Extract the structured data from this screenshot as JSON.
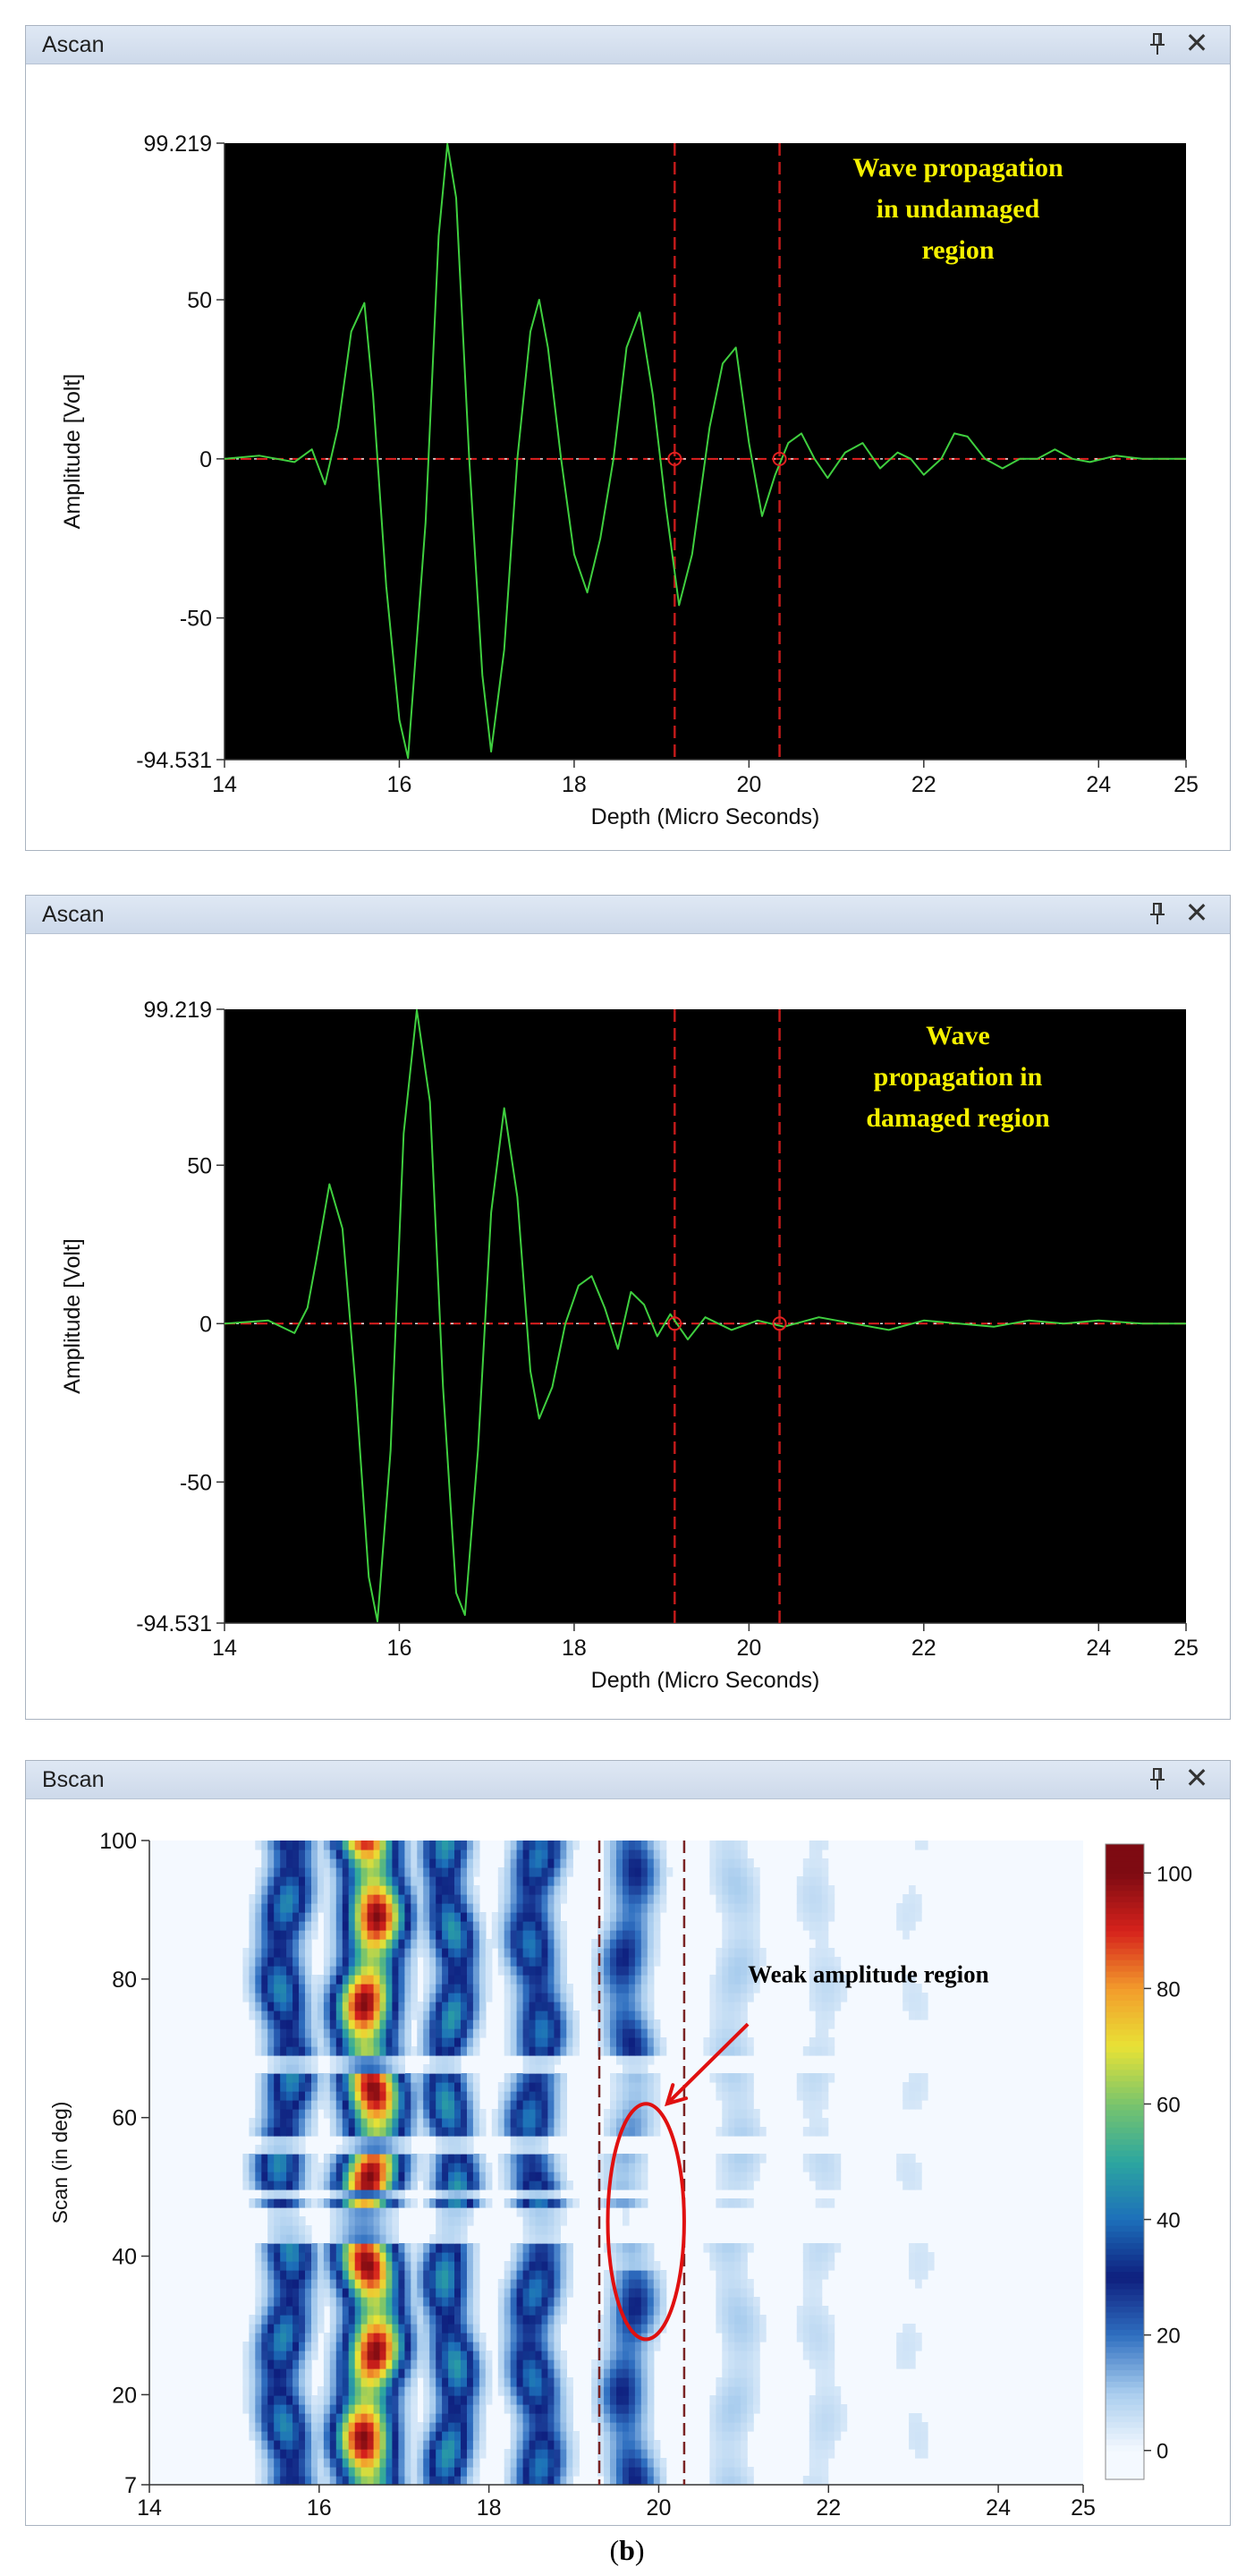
{
  "panels": [
    {
      "title": "Ascan",
      "pin_icon": "pin-icon",
      "close_icon": "close-icon",
      "close_glyph": "✕"
    },
    {
      "title": "Ascan",
      "pin_icon": "pin-icon",
      "close_icon": "close-icon",
      "close_glyph": "✕"
    },
    {
      "title": "Bscan",
      "pin_icon": "pin-icon",
      "close_icon": "close-icon",
      "close_glyph": "✕"
    }
  ],
  "caption": {
    "open": "(",
    "letter": "b",
    "close": ")"
  },
  "chart_data": [
    {
      "type": "line",
      "title": "",
      "xlabel": "Depth (Micro Seconds)",
      "ylabel": "Amplitude [Volt]",
      "xlim": [
        14,
        25
      ],
      "ylim": [
        -94.531,
        99.219
      ],
      "xticks": [
        "14",
        "16",
        "18",
        "20",
        "22",
        "24",
        "25"
      ],
      "yticks": [
        "99.219",
        "50",
        "0",
        "-50",
        "-94.531"
      ],
      "ytick_values": [
        99.219,
        50,
        0,
        -50,
        -94.531
      ],
      "cursors": [
        19.15,
        20.35
      ],
      "background": "#000000",
      "line_color": "#3fcf3f",
      "cursor_color": "#c11a1a",
      "annotation": [
        "Wave propagation",
        "in undamaged",
        "region"
      ],
      "annotation_color": "#f5f100",
      "series": [
        {
          "x": [
            14.0,
            14.4,
            14.8,
            15.0,
            15.15,
            15.3,
            15.45,
            15.6,
            15.7,
            15.85,
            16.0,
            16.1,
            16.3,
            16.45,
            16.55,
            16.65,
            16.8,
            16.95,
            17.05,
            17.2,
            17.35,
            17.5,
            17.6,
            17.7,
            17.85,
            18.0,
            18.15,
            18.3,
            18.45,
            18.6,
            18.75,
            18.9,
            19.05,
            19.2,
            19.35,
            19.55,
            19.7,
            19.85,
            20.0,
            20.15,
            20.3,
            20.45,
            20.6,
            20.75,
            20.9,
            21.1,
            21.3,
            21.5,
            21.7,
            21.85,
            22.0,
            22.2,
            22.35,
            22.5,
            22.7,
            22.9,
            23.1,
            23.3,
            23.5,
            23.7,
            23.9,
            24.2,
            24.5,
            25.0
          ],
          "y": [
            0,
            1,
            -1,
            3,
            -8,
            10,
            40,
            49,
            20,
            -40,
            -82,
            -94,
            -20,
            70,
            99,
            82,
            0,
            -68,
            -92,
            -60,
            0,
            40,
            50,
            35,
            0,
            -30,
            -42,
            -25,
            0,
            35,
            46,
            20,
            -15,
            -46,
            -30,
            10,
            30,
            35,
            5,
            -18,
            -5,
            5,
            8,
            0,
            -6,
            2,
            5,
            -3,
            2,
            0,
            -5,
            0,
            8,
            7,
            0,
            -3,
            0,
            0,
            3,
            0,
            -1,
            1,
            0,
            0
          ]
        }
      ]
    },
    {
      "type": "line",
      "title": "",
      "xlabel": "Depth (Micro Seconds)",
      "ylabel": "Amplitude [Volt]",
      "xlim": [
        14,
        25
      ],
      "ylim": [
        -94.531,
        99.219
      ],
      "xticks": [
        "14",
        "16",
        "18",
        "20",
        "22",
        "24",
        "25"
      ],
      "yticks": [
        "99.219",
        "50",
        "0",
        "-50",
        "-94.531"
      ],
      "ytick_values": [
        99.219,
        50,
        0,
        -50,
        -94.531
      ],
      "cursors": [
        19.15,
        20.35
      ],
      "background": "#000000",
      "line_color": "#3fcf3f",
      "cursor_color": "#c11a1a",
      "annotation": [
        "Wave",
        "propagation in",
        "damaged region"
      ],
      "annotation_color": "#f5f100",
      "series": [
        {
          "x": [
            14.0,
            14.5,
            14.8,
            14.95,
            15.05,
            15.2,
            15.35,
            15.5,
            15.65,
            15.75,
            15.9,
            16.05,
            16.2,
            16.35,
            16.5,
            16.65,
            16.75,
            16.9,
            17.05,
            17.2,
            17.35,
            17.5,
            17.6,
            17.75,
            17.9,
            18.05,
            18.2,
            18.35,
            18.5,
            18.65,
            18.8,
            18.95,
            19.1,
            19.3,
            19.5,
            19.8,
            20.1,
            20.4,
            20.8,
            21.2,
            21.6,
            22.0,
            22.4,
            22.8,
            23.2,
            23.6,
            24.0,
            24.5,
            25.0
          ],
          "y": [
            0,
            1,
            -3,
            5,
            20,
            44,
            30,
            -20,
            -80,
            -94,
            -40,
            60,
            99,
            70,
            -20,
            -85,
            -92,
            -40,
            35,
            68,
            40,
            -15,
            -30,
            -20,
            0,
            12,
            15,
            5,
            -8,
            10,
            6,
            -4,
            3,
            -5,
            2,
            -2,
            1,
            -1,
            2,
            0,
            -2,
            1,
            0,
            -1,
            1,
            0,
            1,
            0,
            0
          ]
        }
      ]
    },
    {
      "type": "heatmap",
      "title": "",
      "xlabel": "Depth (Micro Seconds)",
      "ylabel": "Scan (in deg)",
      "xlim": [
        14,
        25
      ],
      "ylim": [
        7,
        100
      ],
      "xticks": [
        "14",
        "16",
        "18",
        "20",
        "22",
        "24",
        "25"
      ],
      "yticks": [
        "100",
        "80",
        "60",
        "40",
        "20",
        "7"
      ],
      "ytick_values": [
        100,
        80,
        60,
        40,
        20,
        7
      ],
      "colorbar_ticks": [
        "100",
        "80",
        "60",
        "40",
        "20",
        "0"
      ],
      "colorbar_values": [
        100,
        80,
        60,
        40,
        20,
        0
      ],
      "colorbar_range": [
        -5,
        105
      ],
      "colormap": [
        "#f4f9ff",
        "#a9cdee",
        "#2f6fc0",
        "#0e1f7e",
        "#1d6fba",
        "#2ca6a0",
        "#79c46c",
        "#e9e235",
        "#f29b2c",
        "#d6221c",
        "#7e0b12"
      ],
      "cursors": [
        19.3,
        20.3
      ],
      "cursor_color": "#7a2424",
      "bands": [
        {
          "center": 15.6,
          "amplitude": 45,
          "width": 0.28
        },
        {
          "center": 16.6,
          "amplitude": 100,
          "width": 0.34
        },
        {
          "center": 17.55,
          "amplitude": 48,
          "width": 0.26
        },
        {
          "center": 18.55,
          "amplitude": 42,
          "width": 0.28
        },
        {
          "center": 19.65,
          "amplitude": 30,
          "width": 0.28
        },
        {
          "center": 20.9,
          "amplitude": 10,
          "width": 0.3
        },
        {
          "center": 21.9,
          "amplitude": 7,
          "width": 0.3
        },
        {
          "center": 23.0,
          "amplitude": 5,
          "width": 0.3
        }
      ],
      "gap_scans": [
        68,
        56,
        49,
        46,
        43
      ],
      "annotation": "Weak amplitude region",
      "annotation_color": "#000000",
      "highlight": {
        "x": 19.85,
        "y": 45,
        "rx": 0.45,
        "ry": 17,
        "color": "#e01010"
      },
      "arrow": {
        "from_x": 21.05,
        "from_y": 73.5,
        "to_x": 20.1,
        "to_y": 62
      }
    }
  ]
}
